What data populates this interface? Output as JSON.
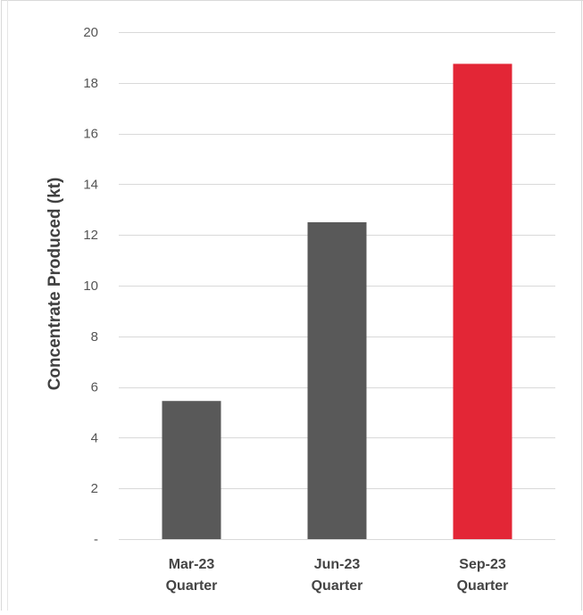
{
  "chart_data": {
    "type": "bar",
    "categories": [
      [
        "Mar-23",
        "Quarter"
      ],
      [
        "Jun-23",
        "Quarter"
      ],
      [
        "Sep-23",
        "Quarter"
      ]
    ],
    "values": [
      5.45,
      12.5,
      18.75
    ],
    "bar_colors": [
      "#595959",
      "#595959",
      "#e32636"
    ],
    "ylabel": "Concentrate Produced (kt)",
    "xlabel": "",
    "title": "",
    "ylim": [
      0,
      20
    ],
    "yticks": [
      0,
      2,
      4,
      6,
      8,
      10,
      12,
      14,
      16,
      18,
      20
    ],
    "ytick_labels": [
      "-",
      "2",
      "4",
      "6",
      "8",
      "10",
      "12",
      "14",
      "16",
      "18",
      "20"
    ],
    "grid": true,
    "legend": "none"
  }
}
